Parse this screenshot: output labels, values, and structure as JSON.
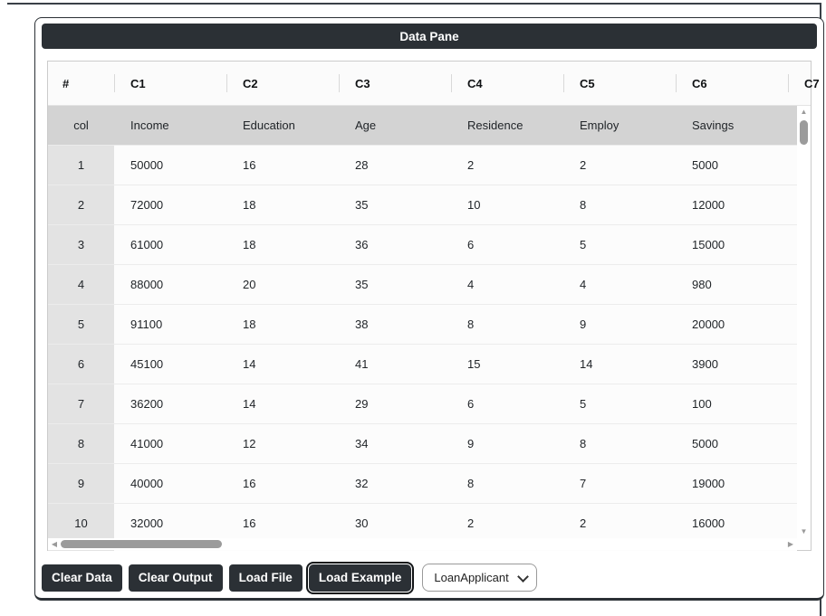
{
  "title": "Data Pane",
  "table": {
    "columns": [
      "#",
      "C1",
      "C2",
      "C3",
      "C4",
      "C5",
      "C6",
      "C7"
    ],
    "header_row": [
      "col",
      "Income",
      "Education",
      "Age",
      "Residence",
      "Employ",
      "Savings"
    ],
    "rows": [
      [
        "1",
        "50000",
        "16",
        "28",
        "2",
        "2",
        "5000"
      ],
      [
        "2",
        "72000",
        "18",
        "35",
        "10",
        "8",
        "12000"
      ],
      [
        "3",
        "61000",
        "18",
        "36",
        "6",
        "5",
        "15000"
      ],
      [
        "4",
        "88000",
        "20",
        "35",
        "4",
        "4",
        "980"
      ],
      [
        "5",
        "91100",
        "18",
        "38",
        "8",
        "9",
        "20000"
      ],
      [
        "6",
        "45100",
        "14",
        "41",
        "15",
        "14",
        "3900"
      ],
      [
        "7",
        "36200",
        "14",
        "29",
        "6",
        "5",
        "100"
      ],
      [
        "8",
        "41000",
        "12",
        "34",
        "9",
        "8",
        "5000"
      ],
      [
        "9",
        "40000",
        "16",
        "32",
        "8",
        "7",
        "19000"
      ],
      [
        "10",
        "32000",
        "16",
        "30",
        "2",
        "2",
        "16000"
      ]
    ]
  },
  "scrollbars": {
    "up_icon": "▲",
    "down_icon": "▼",
    "left_icon": "◀",
    "right_icon": "▶"
  },
  "footer": {
    "buttons": [
      {
        "label": "Clear Data",
        "focused": false
      },
      {
        "label": "Clear Output",
        "focused": false
      },
      {
        "label": "Load File",
        "focused": false
      },
      {
        "label": "Load Example",
        "focused": true
      }
    ],
    "select": {
      "value": "LoanApplicant"
    }
  },
  "colors": {
    "dark": "#2b3035",
    "header_row_gray": "#d3d3d3",
    "row_number_gray": "#e3e3e3",
    "table_border": "#cbcbcb",
    "scroll_thumb": "#9b9b9b"
  }
}
